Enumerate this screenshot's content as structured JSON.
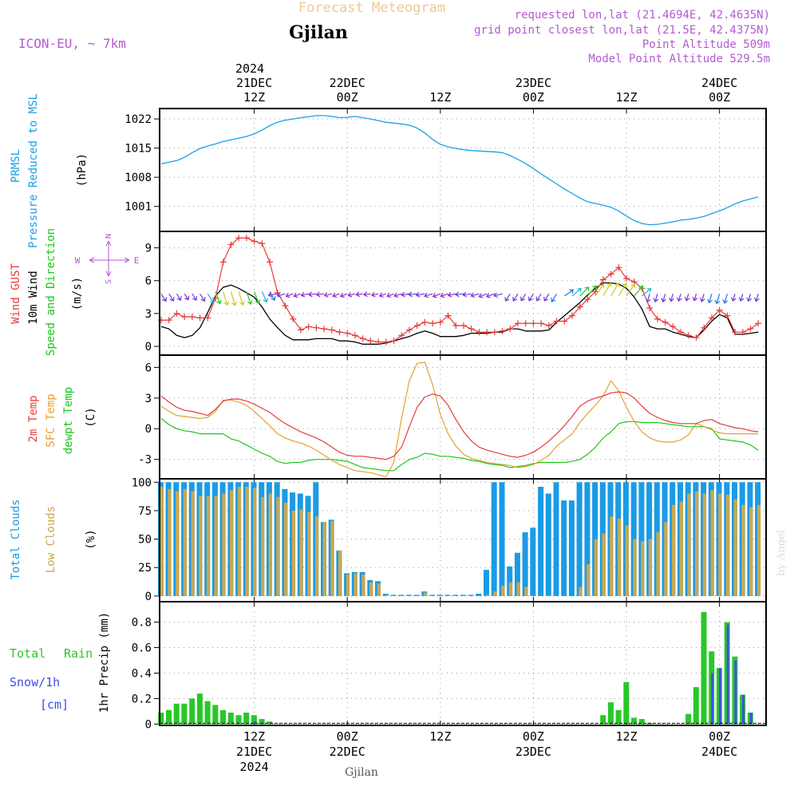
{
  "header": {
    "title": "Forecast Meteogram",
    "location": "Gjilan",
    "model": "ICON-EU, ~ 7km",
    "requested": "requested lon,lat (21.4694E, 42.4635N)",
    "gridpoint": "grid point closest lon,lat (21.5E, 42.4375N)",
    "point_altitude": "Point Altitude 509m",
    "model_altitude": "Model Point Altitude 529.5m",
    "footer_location": "Gjilan",
    "watermark": "by Angel"
  },
  "colors": {
    "pressure": "#19a0e6",
    "gust": "#e63c3c",
    "wind": "#000000",
    "temp": "#e63c3c",
    "sfc": "#e6a032",
    "dew": "#19c819",
    "total_clouds": "#1a9be6",
    "low_clouds": "#c8a850",
    "rain": "#28c828",
    "snow": "#3c50e6",
    "purple": "#b45ad2",
    "orange_title": "#f0c896"
  },
  "time_axis": {
    "top_year": "2024",
    "ticks": [
      {
        "hour": 12,
        "top1": "21DEC",
        "top2": "12Z",
        "bot1": "12Z",
        "bot2": "21DEC",
        "bot3": "2024"
      },
      {
        "hour": 24,
        "top1": "22DEC",
        "top2": "00Z",
        "bot1": "00Z",
        "bot2": "22DEC",
        "bot3": ""
      },
      {
        "hour": 36,
        "top1": "",
        "top2": "12Z",
        "bot1": "12Z",
        "bot2": "",
        "bot3": ""
      },
      {
        "hour": 48,
        "top1": "23DEC",
        "top2": "00Z",
        "bot1": "00Z",
        "bot2": "23DEC",
        "bot3": ""
      },
      {
        "hour": 60,
        "top1": "",
        "top2": "12Z",
        "bot1": "12Z",
        "bot2": "",
        "bot3": ""
      },
      {
        "hour": 72,
        "top1": "24DEC",
        "top2": "00Z",
        "bot1": "00Z",
        "bot2": "24DEC",
        "bot3": ""
      }
    ]
  },
  "chart_data": [
    {
      "type": "line",
      "title": "PRMSL Pressure Reduced to MSL",
      "label1": "PRMSL",
      "label2": "Pressure Reduced to MSL",
      "ylabel": "(hPa)",
      "ylim": [
        995,
        1024.5
      ],
      "yticks": [
        1001,
        1008,
        1015,
        1022
      ],
      "x_hours": [
        0,
        1,
        2,
        3,
        4,
        5,
        6,
        7,
        8,
        9,
        10,
        11,
        12,
        13,
        14,
        15,
        16,
        17,
        18,
        19,
        20,
        21,
        22,
        23,
        24,
        25,
        26,
        27,
        28,
        29,
        30,
        31,
        32,
        33,
        34,
        35,
        36,
        37,
        38,
        39,
        40,
        41,
        42,
        43,
        44,
        45,
        46,
        47,
        48,
        49,
        50,
        51,
        52,
        53,
        54,
        55,
        56,
        57,
        58,
        59,
        60,
        61,
        62,
        63,
        64,
        65,
        66,
        67,
        68,
        69,
        70,
        71,
        72,
        73,
        74,
        75,
        76,
        77
      ],
      "pressure": [
        1011.2,
        1011.6,
        1012.0,
        1012.8,
        1013.9,
        1014.9,
        1015.5,
        1016.0,
        1016.6,
        1017.0,
        1017.4,
        1017.8,
        1018.4,
        1019.3,
        1020.4,
        1021.2,
        1021.7,
        1022.0,
        1022.3,
        1022.5,
        1022.8,
        1022.8,
        1022.6,
        1022.3,
        1022.4,
        1022.6,
        1022.3,
        1022.0,
        1021.6,
        1021.2,
        1021.0,
        1020.8,
        1020.5,
        1019.8,
        1018.6,
        1017.1,
        1015.9,
        1015.3,
        1014.9,
        1014.6,
        1014.4,
        1014.3,
        1014.2,
        1014.1,
        1013.9,
        1013.2,
        1012.3,
        1011.3,
        1010.1,
        1008.8,
        1007.6,
        1006.4,
        1005.2,
        1004.1,
        1003.0,
        1002.1,
        1001.7,
        1001.3,
        1000.8,
        999.9,
        998.7,
        997.6,
        996.9,
        996.6,
        996.7,
        997.0,
        997.3,
        997.7,
        997.9,
        998.2,
        998.6,
        999.3,
        999.9,
        1000.7,
        1001.6,
        1002.3,
        1002.8,
        1003.3
      ]
    },
    {
      "type": "line",
      "title": "Wind GUST / 10m Wind Speed and Direction",
      "label1": "Wind GUST",
      "label2": "10m Wind",
      "label3": "Speed and Direction",
      "ylabel": "(m/s)",
      "compass": {
        "n": "N",
        "s": "S",
        "w": "W",
        "e": "E"
      },
      "ylim": [
        -0.8,
        10.5
      ],
      "yticks": [
        0,
        3,
        6,
        9
      ],
      "gust_hours": [
        0,
        1,
        2,
        3,
        4,
        5,
        6,
        7,
        8,
        9,
        10,
        11,
        12,
        13,
        14,
        15,
        16,
        17,
        18,
        19,
        20,
        21,
        22,
        23,
        24,
        25,
        26,
        27,
        28,
        29,
        30,
        31,
        32,
        33,
        34,
        35,
        36,
        37,
        38,
        39,
        40,
        41,
        42,
        43,
        44,
        45,
        46,
        47,
        48,
        49,
        50,
        51,
        52,
        53,
        54,
        55,
        56,
        57,
        58,
        59,
        60,
        61,
        62,
        63,
        64,
        65,
        66,
        67,
        68,
        69,
        70,
        71,
        72,
        73,
        74,
        75,
        76,
        77
      ],
      "gust": [
        2.4,
        2.4,
        3.0,
        2.7,
        2.7,
        2.6,
        2.6,
        4.4,
        7.7,
        9.3,
        9.9,
        9.9,
        9.6,
        9.4,
        7.7,
        4.9,
        3.7,
        2.5,
        1.5,
        1.8,
        1.7,
        1.6,
        1.5,
        1.3,
        1.2,
        1.0,
        0.7,
        0.5,
        0.4,
        0.4,
        0.5,
        1.0,
        1.5,
        1.9,
        2.2,
        2.1,
        2.2,
        2.8,
        1.9,
        1.9,
        1.6,
        1.3,
        1.3,
        1.3,
        1.4,
        1.6,
        2.1,
        2.1,
        2.1,
        2.1,
        1.9,
        2.3,
        2.3,
        2.8,
        3.6,
        4.3,
        5.0,
        6.1,
        6.6,
        7.2,
        6.2,
        5.9,
        5.3,
        3.5,
        2.5,
        2.2,
        1.8,
        1.3,
        1.0,
        0.8,
        1.7,
        2.6,
        3.3,
        2.8,
        1.3,
        1.3,
        1.6,
        2.1
      ],
      "wind": [
        1.8,
        1.6,
        1.0,
        0.8,
        1.0,
        1.7,
        3.1,
        4.6,
        5.4,
        5.6,
        5.3,
        4.9,
        4.5,
        3.6,
        2.5,
        1.7,
        1.0,
        0.6,
        0.6,
        0.6,
        0.7,
        0.7,
        0.7,
        0.5,
        0.5,
        0.4,
        0.2,
        0.2,
        0.2,
        0.3,
        0.5,
        0.7,
        0.9,
        1.2,
        1.4,
        1.2,
        0.9,
        0.9,
        0.9,
        1.0,
        1.2,
        1.2,
        1.2,
        1.3,
        1.3,
        1.6,
        1.6,
        1.4,
        1.4,
        1.4,
        1.5,
        2.2,
        2.8,
        3.4,
        4.0,
        4.7,
        5.3,
        5.8,
        5.8,
        5.7,
        5.3,
        4.5,
        3.4,
        1.8,
        1.6,
        1.6,
        1.3,
        1.1,
        0.9,
        0.8,
        1.5,
        2.3,
        2.9,
        2.6,
        1.1,
        1.1,
        1.2,
        1.3
      ]
    },
    {
      "type": "line",
      "title": "2m Temp / SFC Temp / dewpt Temp",
      "label1": "2m Temp",
      "label2": "SFC Temp",
      "label3": "dewpt Temp",
      "ylabel": "(C)",
      "ylim": [
        -4.9,
        7.2
      ],
      "yticks": [
        -3,
        0,
        3,
        6
      ],
      "x_hours": [
        0,
        1,
        2,
        3,
        4,
        5,
        6,
        7,
        8,
        9,
        10,
        11,
        12,
        13,
        14,
        15,
        16,
        17,
        18,
        19,
        20,
        21,
        22,
        23,
        24,
        25,
        26,
        27,
        28,
        29,
        30,
        31,
        32,
        33,
        34,
        35,
        36,
        37,
        38,
        39,
        40,
        41,
        42,
        43,
        44,
        45,
        46,
        47,
        48,
        49,
        50,
        51,
        52,
        53,
        54,
        55,
        56,
        57,
        58,
        59,
        60,
        61,
        62,
        63,
        64,
        65,
        66,
        67,
        68,
        69,
        70,
        71,
        72,
        73,
        74,
        75,
        76,
        77
      ],
      "temp2m": [
        3.2,
        2.6,
        2.1,
        1.8,
        1.7,
        1.5,
        1.3,
        1.9,
        2.7,
        2.9,
        2.9,
        2.7,
        2.4,
        2.0,
        1.6,
        1.0,
        0.5,
        0.1,
        -0.3,
        -0.6,
        -0.9,
        -1.3,
        -1.8,
        -2.3,
        -2.6,
        -2.7,
        -2.7,
        -2.8,
        -2.9,
        -3.0,
        -2.7,
        -1.8,
        0.2,
        2.1,
        3.1,
        3.4,
        3.2,
        2.3,
        0.9,
        -0.3,
        -1.2,
        -1.8,
        -2.1,
        -2.3,
        -2.5,
        -2.7,
        -2.8,
        -2.6,
        -2.3,
        -1.8,
        -1.2,
        -0.5,
        0.3,
        1.2,
        2.2,
        2.7,
        3.0,
        3.2,
        3.5,
        3.6,
        3.5,
        3.0,
        2.2,
        1.5,
        1.1,
        0.8,
        0.6,
        0.5,
        0.5,
        0.5,
        0.8,
        0.9,
        0.5,
        0.3,
        0.1,
        0.0,
        -0.2,
        -0.3
      ],
      "sfc": [
        2.2,
        1.7,
        1.3,
        1.2,
        1.1,
        1.0,
        1.1,
        1.7,
        2.8,
        2.8,
        2.6,
        2.3,
        1.7,
        1.0,
        0.3,
        -0.5,
        -0.9,
        -1.2,
        -1.4,
        -1.7,
        -2.1,
        -2.6,
        -3.1,
        -3.5,
        -3.8,
        -4.1,
        -4.2,
        -4.3,
        -4.5,
        -4.7,
        -3.3,
        1.0,
        4.7,
        6.4,
        6.5,
        4.3,
        1.4,
        -0.5,
        -1.7,
        -2.5,
        -2.9,
        -3.1,
        -3.3,
        -3.4,
        -3.5,
        -3.6,
        -3.8,
        -3.7,
        -3.5,
        -3.1,
        -2.6,
        -1.7,
        -1.1,
        -0.5,
        0.6,
        1.5,
        2.3,
        3.2,
        4.7,
        3.7,
        2.1,
        0.7,
        -0.3,
        -0.9,
        -1.2,
        -1.3,
        -1.3,
        -1.1,
        -0.6,
        0.5,
        0.2,
        -0.1,
        -0.4,
        -0.5,
        -0.5,
        -0.5,
        -0.5,
        -0.5
      ],
      "dew": [
        1.0,
        0.4,
        0.0,
        -0.2,
        -0.3,
        -0.5,
        -0.5,
        -0.5,
        -0.5,
        -1.0,
        -1.2,
        -1.6,
        -2.0,
        -2.4,
        -2.7,
        -3.2,
        -3.4,
        -3.3,
        -3.3,
        -3.1,
        -3.0,
        -3.0,
        -3.0,
        -3.1,
        -3.2,
        -3.5,
        -3.8,
        -3.9,
        -4.0,
        -4.1,
        -4.1,
        -3.5,
        -3.0,
        -2.8,
        -2.4,
        -2.5,
        -2.7,
        -2.7,
        -2.8,
        -2.9,
        -3.1,
        -3.2,
        -3.4,
        -3.5,
        -3.6,
        -3.8,
        -3.7,
        -3.6,
        -3.4,
        -3.3,
        -3.3,
        -3.3,
        -3.3,
        -3.2,
        -3.0,
        -2.5,
        -1.8,
        -0.9,
        -0.3,
        0.5,
        0.7,
        0.7,
        0.6,
        0.6,
        0.6,
        0.5,
        0.4,
        0.3,
        0.2,
        0.2,
        0.2,
        0.0,
        -1.0,
        -1.1,
        -1.2,
        -1.3,
        -1.6,
        -2.1
      ]
    },
    {
      "type": "bar",
      "title": "Total Clouds / Low Clouds",
      "label1": "Total Clouds",
      "label2": "Low Clouds",
      "ylabel": "(%)",
      "ylim": [
        -5,
        103
      ],
      "yticks": [
        0,
        25,
        50,
        75,
        100
      ],
      "x_hours": [
        0,
        1,
        2,
        3,
        4,
        5,
        6,
        7,
        8,
        9,
        10,
        11,
        12,
        13,
        14,
        15,
        16,
        17,
        18,
        19,
        20,
        21,
        22,
        23,
        24,
        25,
        26,
        27,
        28,
        29,
        30,
        31,
        32,
        33,
        34,
        35,
        36,
        37,
        38,
        39,
        40,
        41,
        42,
        43,
        44,
        45,
        46,
        47,
        48,
        49,
        50,
        51,
        52,
        53,
        54,
        55,
        56,
        57,
        58,
        59,
        60,
        61,
        62,
        63,
        64,
        65,
        66,
        67,
        68,
        69,
        70,
        71,
        72,
        73,
        74,
        75,
        76,
        77
      ],
      "total": [
        100,
        100,
        100,
        100,
        100,
        100,
        100,
        100,
        100,
        100,
        100,
        100,
        100,
        100,
        100,
        100,
        94,
        91,
        90,
        88,
        100,
        65,
        67,
        40,
        20,
        21,
        21,
        14,
        13,
        2,
        1,
        1,
        1,
        1,
        4,
        1,
        1,
        1,
        1,
        1,
        1,
        2,
        23,
        100,
        100,
        26,
        38,
        56,
        60,
        96,
        90,
        100,
        84,
        84,
        100,
        100,
        100,
        100,
        100,
        100,
        100,
        100,
        100,
        100,
        100,
        100,
        100,
        100,
        100,
        100,
        100,
        100,
        100,
        100,
        100,
        100,
        100,
        100
      ],
      "low": [
        96,
        94,
        92,
        94,
        92,
        88,
        88,
        88,
        90,
        93,
        96,
        96,
        95,
        87,
        90,
        87,
        82,
        75,
        76,
        74,
        70,
        65,
        66,
        40,
        19,
        20,
        19,
        12,
        11,
        1,
        0,
        0,
        0,
        0,
        3,
        0,
        0,
        0,
        0,
        0,
        0,
        0,
        1,
        4,
        9,
        12,
        12,
        8,
        0,
        0,
        0,
        0,
        0,
        0,
        8,
        28,
        50,
        55,
        70,
        68,
        62,
        50,
        48,
        50,
        56,
        65,
        80,
        83,
        90,
        92,
        90,
        93,
        90,
        89,
        85,
        80,
        78,
        80
      ]
    },
    {
      "type": "bar",
      "title": "1hr Precip (mm)",
      "label1": "Total",
      "label2": "Rain",
      "label3": "Snow/1h",
      "label4": "[cm]",
      "ylabel": "1hr Precip (mm)",
      "ylim": [
        -0.01,
        0.96
      ],
      "yticks": [
        0,
        0.2,
        0.4,
        0.6,
        0.8
      ],
      "ytick_labels": [
        "0",
        "0.2",
        "0.4",
        "0.6",
        "0.8"
      ],
      "x_hours": [
        0,
        1,
        2,
        3,
        4,
        5,
        6,
        7,
        8,
        9,
        10,
        11,
        12,
        13,
        14,
        15,
        16,
        17,
        18,
        19,
        20,
        21,
        22,
        23,
        24,
        25,
        26,
        27,
        28,
        29,
        30,
        31,
        32,
        33,
        34,
        35,
        36,
        37,
        38,
        39,
        40,
        41,
        42,
        43,
        44,
        45,
        46,
        47,
        48,
        49,
        50,
        51,
        52,
        53,
        54,
        55,
        56,
        57,
        58,
        59,
        60,
        61,
        62,
        63,
        64,
        65,
        66,
        67,
        68,
        69,
        70,
        71,
        72,
        73,
        74,
        75,
        76,
        77
      ],
      "rain": [
        0.09,
        0.11,
        0.16,
        0.16,
        0.2,
        0.24,
        0.18,
        0.15,
        0.11,
        0.09,
        0.07,
        0.09,
        0.07,
        0.04,
        0.02,
        0,
        0,
        0,
        0,
        0,
        0,
        0,
        0,
        0,
        0,
        0,
        0,
        0,
        0,
        0,
        0,
        0,
        0,
        0,
        0,
        0,
        0,
        0,
        0,
        0,
        0,
        0,
        0,
        0,
        0,
        0,
        0,
        0,
        0,
        0,
        0,
        0,
        0,
        0,
        0,
        0,
        0,
        0.07,
        0.17,
        0.11,
        0.33,
        0.05,
        0.04,
        0.01,
        0,
        0,
        0,
        0,
        0.08,
        0.29,
        0.88,
        0.57,
        0.44,
        0.8,
        0.53,
        0.23,
        0.09,
        0
      ],
      "snow": [
        0,
        0,
        0,
        0,
        0,
        0,
        0,
        0,
        0,
        0,
        0,
        0,
        0.02,
        0.01,
        0,
        0,
        0,
        0,
        0,
        0,
        0,
        0,
        0,
        0,
        0,
        0,
        0,
        0,
        0,
        0,
        0,
        0,
        0,
        0,
        0,
        0,
        0,
        0,
        0,
        0,
        0,
        0,
        0,
        0,
        0,
        0,
        0,
        0,
        0,
        0,
        0,
        0,
        0,
        0,
        0,
        0,
        0,
        0,
        0,
        0,
        0,
        0,
        0,
        0,
        0,
        0,
        0,
        0,
        0,
        0,
        0,
        0.4,
        0.44,
        0.78,
        0.5,
        0.23,
        0.09,
        0
      ]
    }
  ]
}
